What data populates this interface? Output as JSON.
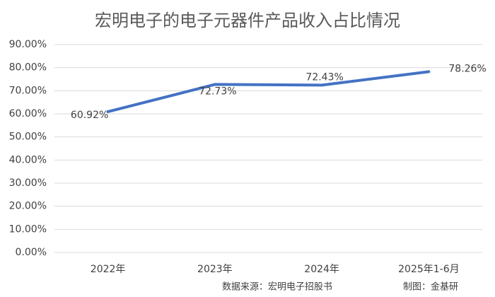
{
  "chart_data": {
    "type": "line",
    "title": "宏明电子的电子元器件产品收入占比情况",
    "categories": [
      "2022年",
      "2023年",
      "2024年",
      "2025年1-6月"
    ],
    "values": [
      60.92,
      72.73,
      72.43,
      78.26
    ],
    "value_labels": [
      "60.92%",
      "72.73%",
      "72.43%",
      "78.26%"
    ],
    "color": "#4472c4",
    "ylim": [
      0,
      90
    ],
    "yticks": [
      {
        "value": 0,
        "label": "0.00%"
      },
      {
        "value": 10,
        "label": "10.00%"
      },
      {
        "value": 20,
        "label": "20.00%"
      },
      {
        "value": 30,
        "label": "30.00%"
      },
      {
        "value": 40,
        "label": "40.00%"
      },
      {
        "value": 50,
        "label": "50.00%"
      },
      {
        "value": 60,
        "label": "60.00%"
      },
      {
        "value": 70,
        "label": "70.00%"
      },
      {
        "value": 80,
        "label": "80.00%"
      },
      {
        "value": 90,
        "label": "90.00%"
      }
    ],
    "grid": true,
    "source": "数据来源：宏明电子招股书",
    "credit": "制图：金基研"
  }
}
